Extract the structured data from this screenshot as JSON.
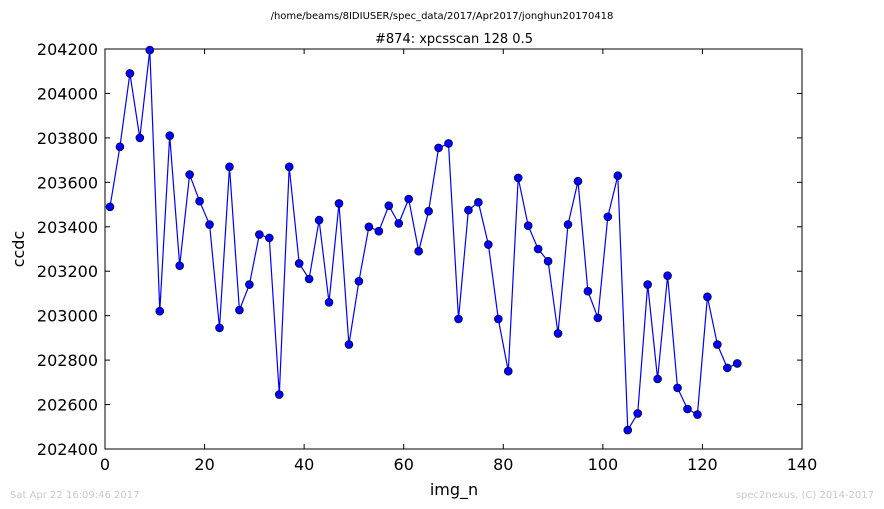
{
  "header": {
    "path": "/home/beams/8IDIUSER/spec_data/2017/Apr2017/jonghun20170418",
    "scan_title": "#874: xpcsscan 128 0.5"
  },
  "footer": {
    "timestamp": "Sat Apr 22 16:09:46 2017",
    "credit": "spec2nexus, (C) 2014-2017"
  },
  "chart_data": {
    "type": "line",
    "title": "#874: xpcsscan 128 0.5",
    "xlabel": "img_n",
    "ylabel": "ccdc",
    "xlim": [
      0,
      140
    ],
    "ylim": [
      202400,
      204200
    ],
    "xticks": [
      "0",
      "20",
      "40",
      "60",
      "80",
      "100",
      "120",
      "140"
    ],
    "yticks": [
      "202400",
      "202600",
      "202800",
      "203000",
      "203200",
      "203400",
      "203600",
      "203800",
      "204000",
      "204200"
    ],
    "grid": false,
    "series": [
      {
        "color": "#0000ff",
        "marker": "circle",
        "x": [
          1,
          3,
          5,
          7,
          9,
          11,
          13,
          15,
          17,
          19,
          21,
          23,
          25,
          27,
          29,
          31,
          33,
          35,
          37,
          39,
          41,
          43,
          45,
          47,
          49,
          51,
          53,
          55,
          57,
          59,
          61,
          63,
          65,
          67,
          69,
          71,
          73,
          75,
          77,
          79,
          81,
          83,
          85,
          87,
          89,
          91,
          93,
          95,
          97,
          99,
          101,
          103,
          105,
          107,
          109,
          111,
          113,
          115,
          117,
          119,
          121,
          123,
          125,
          127
        ],
        "y": [
          203490,
          203760,
          204090,
          203800,
          204195,
          203020,
          203810,
          203225,
          203635,
          203515,
          203410,
          202945,
          203670,
          203025,
          203140,
          203365,
          203350,
          202645,
          203670,
          203235,
          203165,
          203430,
          203060,
          203505,
          202870,
          203155,
          203400,
          203380,
          203495,
          203415,
          203525,
          203290,
          203470,
          203755,
          203775,
          202985,
          203475,
          203510,
          203320,
          202985,
          202750,
          203620,
          203405,
          203300,
          203245,
          202920,
          203410,
          203605,
          203110,
          202990,
          203445,
          203630,
          202485,
          202560,
          203140,
          202715,
          203180,
          202675,
          202580,
          202555,
          203085,
          202870,
          202765,
          202785
        ]
      }
    ]
  }
}
